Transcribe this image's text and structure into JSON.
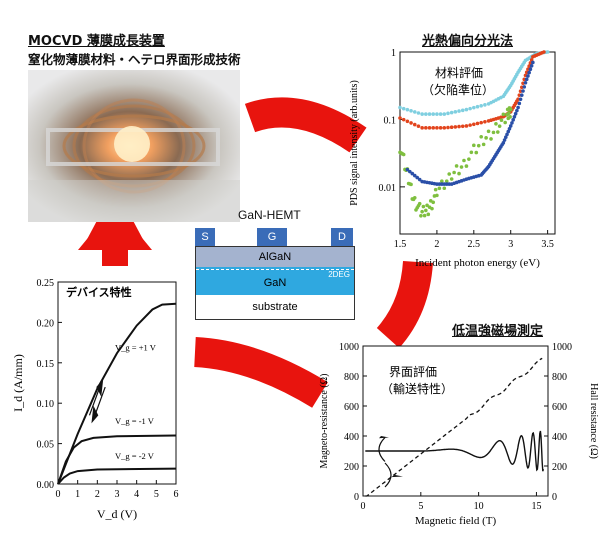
{
  "top_left": {
    "title": "MOCVD 薄膜成長装置",
    "subtitle": "窒化物薄膜材料・ヘテロ界面形成技術"
  },
  "hemt": {
    "title": "GaN-HEMT",
    "contacts": [
      "S",
      "G",
      "D"
    ],
    "layers": [
      "AlGaN",
      "GaN",
      "substrate"
    ],
    "deg_label": "2DEG"
  },
  "pds": {
    "section_title": "光熱偏向分光法",
    "annotation": [
      "材料評価",
      "（欠陥準位）"
    ],
    "chart_data": {
      "type": "scatter",
      "xlabel": "Incident photon energy (eV)",
      "ylabel": "PDS signal intensity (arb.units)",
      "xlim": [
        1.5,
        3.6
      ],
      "ylim": [
        0.002,
        1
      ],
      "yscale": "log",
      "x_ticks": [
        "1.5",
        "2",
        "2.5",
        "3",
        "3.5"
      ],
      "y_ticks": [
        "1",
        "0.1",
        "0.01"
      ],
      "series": [
        {
          "color": "#7fcfe0",
          "points": [
            [
              1.5,
              0.15
            ],
            [
              1.8,
              0.12
            ],
            [
              2.1,
              0.12
            ],
            [
              2.4,
              0.14
            ],
            [
              2.7,
              0.17
            ],
            [
              2.9,
              0.22
            ],
            [
              3.0,
              0.32
            ],
            [
              3.1,
              0.5
            ],
            [
              3.2,
              0.75
            ],
            [
              3.35,
              0.95
            ],
            [
              3.5,
              1.0
            ]
          ]
        },
        {
          "color": "#e2441c",
          "points": [
            [
              1.5,
              0.105
            ],
            [
              1.8,
              0.075
            ],
            [
              2.1,
              0.075
            ],
            [
              2.4,
              0.08
            ],
            [
              2.7,
              0.095
            ],
            [
              2.9,
              0.11
            ],
            [
              3.0,
              0.13
            ],
            [
              3.1,
              0.2
            ],
            [
              3.2,
              0.45
            ],
            [
              3.3,
              0.85
            ],
            [
              3.45,
              1.0
            ]
          ]
        },
        {
          "color": "#7fbf3f",
          "points": [
            [
              1.5,
              0.04
            ],
            [
              1.6,
              0.015
            ],
            [
              1.7,
              0.006
            ],
            [
              1.8,
              0.004
            ],
            [
              1.9,
              0.005
            ],
            [
              2.0,
              0.008
            ],
            [
              2.2,
              0.015
            ],
            [
              2.4,
              0.025
            ],
            [
              2.6,
              0.045
            ],
            [
              2.8,
              0.075
            ],
            [
              2.95,
              0.11
            ],
            [
              3.0,
              0.14
            ]
          ]
        },
        {
          "color": "#2a4fa8",
          "points": [
            [
              1.6,
              0.018
            ],
            [
              1.8,
              0.012
            ],
            [
              2.0,
              0.011
            ],
            [
              2.2,
              0.011
            ],
            [
              2.4,
              0.013
            ],
            [
              2.6,
              0.015
            ],
            [
              2.7,
              0.02
            ],
            [
              2.8,
              0.03
            ],
            [
              2.9,
              0.045
            ],
            [
              3.0,
              0.08
            ],
            [
              3.1,
              0.15
            ],
            [
              3.2,
              0.35
            ],
            [
              3.3,
              0.7
            ]
          ]
        }
      ]
    }
  },
  "device": {
    "annotation": "デバイス特性",
    "chart_data": {
      "type": "line",
      "xlabel": "V_d (V)",
      "ylabel": "I_d (A/mm)",
      "xlim": [
        0,
        6
      ],
      "ylim": [
        0,
        0.25
      ],
      "x_ticks": [
        "0",
        "1",
        "2",
        "3",
        "4",
        "5",
        "6"
      ],
      "y_ticks": [
        "0.00",
        "0.05",
        "0.10",
        "0.15",
        "0.20",
        "0.25"
      ],
      "series": [
        {
          "name": "V_g = +1 V",
          "points": [
            [
              0,
              0
            ],
            [
              1,
              0.062
            ],
            [
              2,
              0.118
            ],
            [
              3,
              0.162
            ],
            [
              4,
              0.196
            ],
            [
              4.8,
              0.216
            ],
            [
              5.3,
              0.222
            ],
            [
              6,
              0.223
            ]
          ]
        },
        {
          "name": "V_g = -1 V",
          "points": [
            [
              0,
              0
            ],
            [
              0.4,
              0.028
            ],
            [
              0.8,
              0.045
            ],
            [
              1.2,
              0.053
            ],
            [
              1.8,
              0.057
            ],
            [
              3,
              0.059
            ],
            [
              6,
              0.06
            ]
          ]
        },
        {
          "name": "V_g = -2 V",
          "points": [
            [
              0,
              0
            ],
            [
              0.3,
              0.008
            ],
            [
              0.6,
              0.013
            ],
            [
              1.0,
              0.016
            ],
            [
              2,
              0.018
            ],
            [
              6,
              0.019
            ]
          ]
        }
      ]
    }
  },
  "magneto": {
    "section_title": "低温強磁場測定",
    "annotation": [
      "界面評価",
      "（輸送特性）"
    ],
    "chart_data": {
      "type": "line",
      "xlabel": "Magnetic field (T)",
      "ylabel_left": "Magneto-resistance (Ω)",
      "ylabel_right": "Hall resistance (Ω)",
      "xlim": [
        0,
        16
      ],
      "ylim": [
        0,
        1000
      ],
      "x_ticks": [
        "0",
        "5",
        "10",
        "15"
      ],
      "y_ticks": [
        "0",
        "200",
        "400",
        "600",
        "800",
        "1000"
      ],
      "series": [
        {
          "name": "Magneto-resistance",
          "style": "solid"
        },
        {
          "name": "Hall resistance",
          "style": "dashed"
        }
      ]
    }
  }
}
